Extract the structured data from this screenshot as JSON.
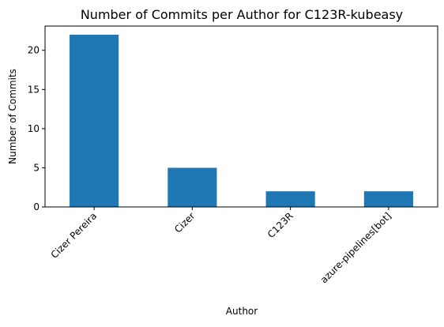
{
  "chart_data": {
    "type": "bar",
    "title": "Number of Commits per Author for C123R-kubeasy",
    "xlabel": "Author",
    "ylabel": "Number of Commits",
    "categories": [
      "Cizer Pereira",
      "Cizer",
      "C123R",
      "azure-pipelines[bot]"
    ],
    "values": [
      22,
      5,
      2,
      2
    ],
    "ylim": [
      0,
      23.1
    ],
    "yticks": [
      0,
      5,
      10,
      15,
      20
    ],
    "grid": false,
    "bar_color": "#1f77b4"
  }
}
